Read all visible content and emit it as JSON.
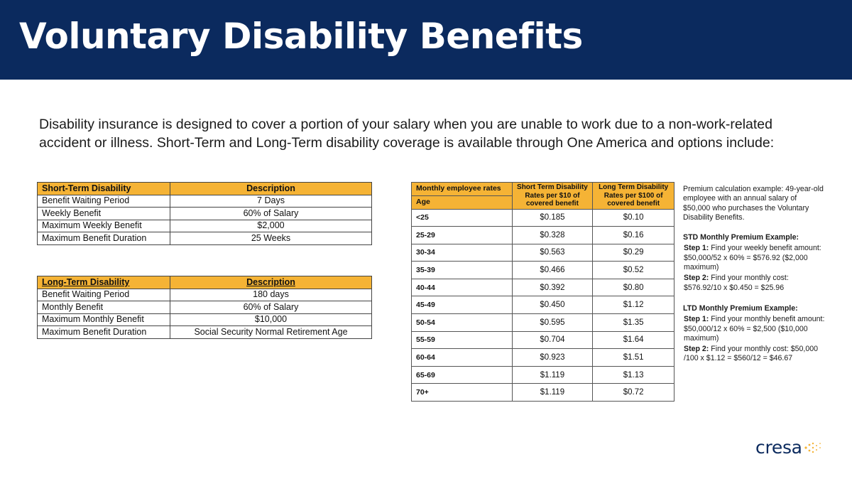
{
  "header": {
    "title": "Voluntary Disability Benefits"
  },
  "intro": "Disability insurance is designed to cover a portion of your salary when you are unable to work due to a non-work-related accident or illness. Short-Term and Long-Term disability coverage is available through One America and options include:",
  "std_table": {
    "headers": [
      "Short-Term Disability",
      "Description"
    ],
    "rows": [
      [
        "Benefit Waiting Period",
        "7 Days"
      ],
      [
        "Weekly Benefit",
        "60% of Salary"
      ],
      [
        "Maximum Weekly Benefit",
        "$2,000"
      ],
      [
        "Maximum Benefit Duration",
        "25 Weeks"
      ]
    ]
  },
  "ltd_table": {
    "headers": [
      "Long-Term Disability",
      "Description"
    ],
    "rows": [
      [
        "Benefit Waiting Period",
        "180 days"
      ],
      [
        "Monthly Benefit",
        "60% of Salary"
      ],
      [
        "Maximum Monthly Benefit",
        "$10,000"
      ],
      [
        "Maximum Benefit Duration",
        "Social Security Normal Retirement Age"
      ]
    ]
  },
  "rates_table": {
    "header_top": "Monthly employee rates",
    "header_age": "Age",
    "header_std": "Short Term Disability Rates per $10 of covered benefit",
    "header_ltd": "Long Term Disability Rates per $100 of covered benefit",
    "rows": [
      [
        "<25",
        "$0.185",
        "$0.10"
      ],
      [
        "25-29",
        "$0.328",
        "$0.16"
      ],
      [
        "30-34",
        "$0.563",
        "$0.29"
      ],
      [
        "35-39",
        "$0.466",
        "$0.52"
      ],
      [
        "40-44",
        "$0.392",
        "$0.80"
      ],
      [
        "45-49",
        "$0.450",
        "$1.12"
      ],
      [
        "50-54",
        "$0.595",
        "$1.35"
      ],
      [
        "55-59",
        "$0.704",
        "$1.64"
      ],
      [
        "60-64",
        "$0.923",
        "$1.51"
      ],
      [
        "65-69",
        "$1.119",
        "$1.13"
      ],
      [
        "70+",
        "$1.119",
        "$0.72"
      ]
    ]
  },
  "example": {
    "intro": "Premium calculation example: 49-year-old employee with an annual salary of $50,000 who purchases the Voluntary Disability Benefits.",
    "std_title": "STD Monthly Premium Example:",
    "std_step1_label": "Step 1:",
    "std_step1_text": " Find your weekly benefit amount: $50,000/52 x 60% = $576.92 ($2,000 maximum)",
    "std_step2_label": "Step 2:",
    "std_step2_text": " Find your monthly cost: $576.92/10 x $0.450 = $25.96",
    "ltd_title": "LTD Monthly Premium Example:",
    "ltd_step1_label": "Step 1:",
    "ltd_step1_text": " Find your monthly benefit amount: $50,000/12 x 60% = $2,500 ($10,000 maximum)",
    "ltd_step2_label": "Step 2:",
    "ltd_step2_text": " Find your monthly cost: $50,000 /100 x $1.12 = $560/12 = $46.67"
  },
  "logo": {
    "text": "cresa",
    "icon": "dot-burst-icon",
    "icon_color": "#f5b335",
    "brand_color": "#0b2a5e"
  }
}
